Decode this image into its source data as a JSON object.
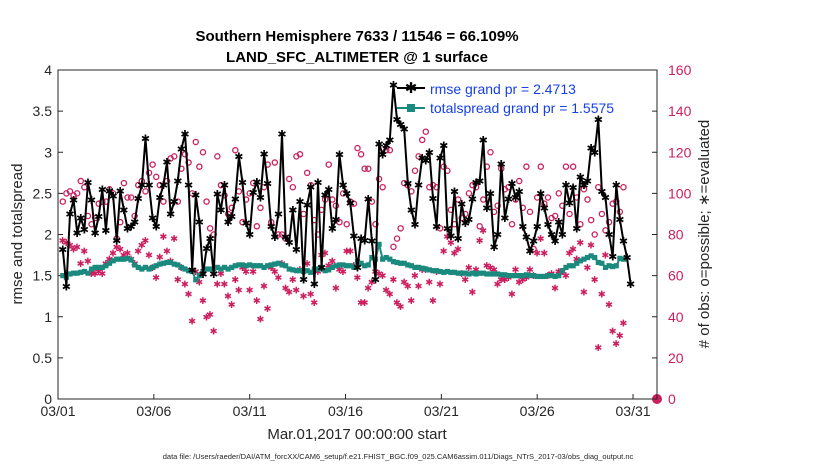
{
  "chart_data": {
    "type": "line",
    "title_line1": "Southern Hemisphere 7633 / 11546 = 66.109%",
    "title_line2": "LAND_SFC_ALTIMETER @ 1 surface",
    "xlabel": "Mar.01,2017 00:00:00 start",
    "ylabel_left": "rmse and totalspread",
    "ylabel_right": "# of obs: o=possible; ∗=evaluated",
    "footnote": "data file: /Users/raeder/DAI/ATM_forcXX/CAM6_setup/f.e21.FHIST_BGC.f09_025.CAM6assim.011/Diags_NTrS_2017-03/obs_diag_output.nc",
    "x_range": [
      1,
      32.25
    ],
    "ylim_left": [
      0,
      4
    ],
    "ylim_right": [
      0,
      160
    ],
    "x_ticks": [
      1,
      6,
      11,
      16,
      21,
      26,
      31
    ],
    "x_tick_labels": [
      "03/01",
      "03/06",
      "03/11",
      "03/16",
      "03/21",
      "03/26",
      "03/31"
    ],
    "y_ticks_left": [
      "0",
      "0.5",
      "1",
      "1.5",
      "2",
      "2.5",
      "3",
      "3.5",
      "4"
    ],
    "y_ticks_right": [
      "0",
      "20",
      "40",
      "60",
      "80",
      "100",
      "120",
      "140",
      "160"
    ],
    "colors": {
      "rmse": "#000000",
      "spread": "#1a8a7e",
      "obs": "#cc1f5f",
      "highlight": "#1740e6"
    },
    "series": [
      {
        "name": "rmse",
        "legend": "rmse grand pr = 2.4713",
        "values": [
          1.82,
          1.37,
          2.25,
          2.42,
          2.02,
          2.2,
          2.06,
          2.63,
          2.42,
          2.02,
          2.22,
          2.55,
          2.05,
          2.53,
          2.47,
          1.93,
          2.53,
          2.3,
          2.07,
          2.1,
          2.15,
          2.44,
          2.6,
          3.17,
          2.6,
          2.2,
          2.1,
          2.45,
          2.6,
          2.88,
          2.25,
          2.4,
          2.65,
          3.04,
          3.22,
          2.6,
          1.57,
          2.48,
          2.15,
          1.52,
          1.83,
          1.95,
          1.52,
          2.49,
          2.3,
          2.6,
          2.15,
          2.22,
          2.43,
          2.95,
          2.63,
          2.14,
          2.0,
          2.51,
          2.64,
          2.45,
          2.98,
          2.62,
          2.1,
          1.97,
          2.25,
          3.22,
          1.97,
          1.9,
          2.3,
          1.82,
          2.4,
          1.45,
          2.36,
          2.58,
          1.4,
          2.63,
          1.6,
          2.48,
          2.55,
          2.07,
          2.18,
          2.97,
          2.6,
          2.5,
          2.38,
          1.98,
          1.6,
          1.95,
          1.93,
          2.43,
          1.92,
          1.45,
          3.1,
          2.97,
          3.08,
          3.15,
          3.82,
          3.4,
          3.34,
          3.28,
          2.62,
          2.3,
          2.12,
          2.6,
          2.93,
          2.9,
          3.0,
          2.44,
          2.1,
          2.93,
          3.08,
          2.07,
          1.98,
          2.52,
          1.95,
          2.37,
          2.14,
          2.18,
          2.43,
          2.63,
          2.65,
          3.15,
          2.32,
          2.5,
          1.85,
          2.0,
          2.86,
          2.2,
          2.43,
          2.62,
          2.45,
          2.52,
          2.1,
          1.97,
          1.8,
          1.92,
          2.1,
          2.5,
          2.32,
          2.12,
          2.0,
          1.92,
          2.15,
          2.0,
          2.6,
          2.38,
          2.57,
          2.07,
          2.7,
          2.6,
          2.65,
          3.05,
          3.0,
          3.4,
          2.52,
          2.45,
          2.0,
          1.73,
          2.6,
          2.18,
          1.92,
          1.72,
          1.4
        ]
      },
      {
        "name": "totalspread",
        "legend": "totalspread grand pr = 1.5575",
        "values": [
          1.5,
          1.48,
          1.52,
          1.53,
          1.53,
          1.54,
          1.55,
          1.53,
          1.58,
          1.6,
          1.6,
          1.6,
          1.62,
          1.65,
          1.68,
          1.7,
          1.7,
          1.7,
          1.71,
          1.69,
          1.63,
          1.6,
          1.58,
          1.6,
          1.58,
          1.6,
          1.62,
          1.64,
          1.65,
          1.66,
          1.66,
          1.64,
          1.63,
          1.6,
          1.58,
          1.56,
          1.55,
          1.45,
          1.5,
          1.55,
          1.58,
          1.58,
          1.58,
          1.6,
          1.58,
          1.6,
          1.58,
          1.6,
          1.62,
          1.63,
          1.63,
          1.62,
          1.63,
          1.62,
          1.62,
          1.62,
          1.6,
          1.62,
          1.63,
          1.64,
          1.65,
          1.63,
          1.62,
          1.58,
          1.57,
          1.56,
          1.56,
          1.55,
          1.56,
          1.54,
          1.58,
          1.58,
          1.6,
          1.56,
          1.57,
          1.6,
          1.62,
          1.63,
          1.63,
          1.62,
          1.62,
          1.6,
          1.67,
          1.65,
          1.62,
          1.63,
          1.72,
          1.7,
          1.88,
          1.7,
          1.72,
          1.7,
          1.67,
          1.66,
          1.65,
          1.65,
          1.63,
          1.62,
          1.6,
          1.6,
          1.59,
          1.58,
          1.57,
          1.56,
          1.56,
          1.55,
          1.54,
          1.55,
          1.54,
          1.54,
          1.53,
          1.53,
          1.53,
          1.52,
          1.53,
          1.52,
          1.53,
          1.53,
          1.52,
          1.52,
          1.52,
          1.52,
          1.51,
          1.51,
          1.5,
          1.5,
          1.5,
          1.5,
          1.5,
          1.51,
          1.5,
          1.5,
          1.49,
          1.49,
          1.49,
          1.5,
          1.5,
          1.49,
          1.5,
          1.56,
          1.6,
          1.62,
          1.62,
          1.65,
          1.68,
          1.7,
          1.72,
          1.74,
          1.72,
          1.66,
          1.65,
          1.6,
          1.62,
          1.61,
          1.62,
          1.71,
          1.7
        ]
      },
      {
        "name": "obs possible",
        "marker": "o",
        "values": [
          96,
          100,
          101,
          99,
          100,
          106,
          103,
          89,
          85,
          88,
          95,
          96,
          96,
          102,
          100,
          78,
          86,
          105,
          98,
          98,
          89,
          104,
          106,
          101,
          110,
          114,
          108,
          104,
          96,
          106,
          117,
          118,
          96,
          112,
          119,
          115,
          100,
          125,
          113,
          120,
          96,
          83,
          80,
          118,
          104,
          99,
          90,
          93,
          121,
          101,
          86,
          97,
          100,
          105,
          84,
          93,
          103,
          114,
          86,
          115,
          80,
          80,
          78,
          107,
          103,
          118,
          119,
          90,
          110,
          104,
          87,
          80,
          92,
          97,
          114,
          97,
          94,
          86,
          100,
          85,
          96,
          95,
          122,
          119,
          112,
          112,
          96,
          85,
          107,
          103,
          121,
          121,
          74,
          78,
          83,
          105,
          104,
          101,
          111,
          118,
          126,
          130,
          103,
          104,
          103,
          83,
          113,
          111,
          92,
          85,
          97,
          88,
          90,
          100,
          104,
          103,
          84,
          97,
          113,
          120,
          91,
          94,
          112,
          102,
          103,
          85,
          97,
          106,
          93,
          113,
          91,
          73,
          98,
          113,
          95,
          98,
          88,
          89,
          100,
          94,
          113,
          90,
          113,
          98,
          85,
          102,
          97,
          87,
          80,
          103,
          90,
          82,
          86,
          95,
          96,
          91,
          103
        ]
      },
      {
        "name": "obs evaluated",
        "marker": "*",
        "values": [
          77,
          76,
          75,
          73,
          74,
          66,
          72,
          67,
          61,
          61,
          62,
          61,
          66,
          68,
          71,
          74,
          73,
          70,
          71,
          68,
          66,
          72,
          75,
          77,
          70,
          64,
          59,
          69,
          79,
          72,
          67,
          78,
          58,
          64,
          56,
          51,
          38,
          62,
          57,
          48,
          40,
          41,
          33,
          56,
          61,
          56,
          50,
          46,
          58,
          53,
          64,
          62,
          53,
          62,
          48,
          39,
          55,
          44,
          64,
          62,
          59,
          66,
          54,
          52,
          58,
          53,
          63,
          50,
          66,
          51,
          47,
          62,
          70,
          71,
          65,
          67,
          54,
          63,
          62,
          72,
          72,
          65,
          59,
          47,
          47,
          54,
          57,
          62,
          61,
          60,
          53,
          51,
          58,
          47,
          45,
          57,
          55,
          48,
          60,
          55,
          63,
          63,
          57,
          48,
          62,
          56,
          72,
          79,
          76,
          71,
          73,
          61,
          58,
          64,
          52,
          63,
          77,
          82,
          65,
          64,
          63,
          56,
          58,
          58,
          59,
          51,
          63,
          57,
          58,
          59,
          63,
          60,
          71,
          78,
          71,
          60,
          61,
          54,
          62,
          62,
          60,
          71,
          73,
          68,
          76,
          52,
          64,
          75,
          58,
          25,
          51,
          70,
          46,
          33,
          27,
          31,
          37
        ]
      }
    ]
  }
}
